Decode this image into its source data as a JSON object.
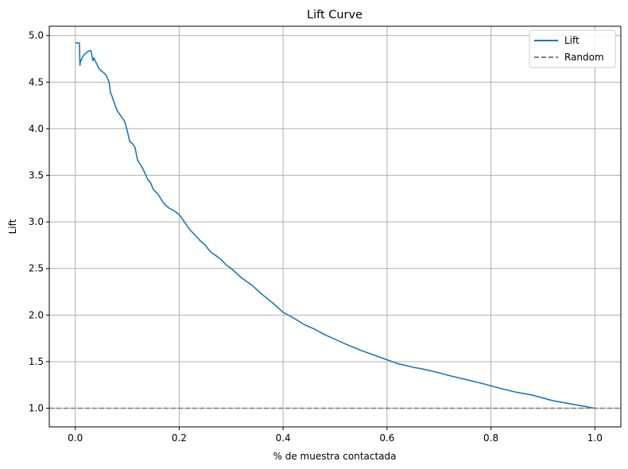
{
  "chart_data": {
    "type": "line",
    "title": "Lift Curve",
    "xlabel": "% de muestra contactada",
    "ylabel": "Lift",
    "xlim": [
      -0.05,
      1.05
    ],
    "ylim": [
      0.8,
      5.1
    ],
    "xticks": [
      0.0,
      0.2,
      0.4,
      0.6,
      0.8,
      1.0
    ],
    "xtick_labels": [
      "0.0",
      "0.2",
      "0.4",
      "0.6",
      "0.8",
      "1.0"
    ],
    "yticks": [
      1.0,
      1.5,
      2.0,
      2.5,
      3.0,
      3.5,
      4.0,
      4.5,
      5.0
    ],
    "ytick_labels": [
      "1.0",
      "1.5",
      "2.0",
      "2.5",
      "3.0",
      "3.5",
      "4.0",
      "4.5",
      "5.0"
    ],
    "grid": true,
    "legend_position": "top-right",
    "series": [
      {
        "name": "Lift",
        "color": "#1f77b4",
        "style": "solid",
        "x": [
          0.0,
          0.008,
          0.009,
          0.01,
          0.015,
          0.02,
          0.025,
          0.03,
          0.034,
          0.036,
          0.04,
          0.042,
          0.045,
          0.05,
          0.055,
          0.06,
          0.065,
          0.068,
          0.07,
          0.075,
          0.08,
          0.085,
          0.09,
          0.095,
          0.1,
          0.105,
          0.11,
          0.115,
          0.12,
          0.125,
          0.13,
          0.14,
          0.145,
          0.15,
          0.155,
          0.16,
          0.17,
          0.18,
          0.19,
          0.2,
          0.21,
          0.22,
          0.23,
          0.24,
          0.25,
          0.26,
          0.27,
          0.28,
          0.29,
          0.3,
          0.32,
          0.34,
          0.36,
          0.38,
          0.4,
          0.42,
          0.44,
          0.46,
          0.48,
          0.5,
          0.52,
          0.55,
          0.58,
          0.6,
          0.62,
          0.65,
          0.67,
          0.7,
          0.72,
          0.75,
          0.78,
          0.8,
          0.82,
          0.85,
          0.88,
          0.9,
          0.92,
          0.95,
          0.98,
          1.0
        ],
        "y": [
          4.92,
          4.92,
          4.68,
          4.72,
          4.78,
          4.81,
          4.83,
          4.84,
          4.73,
          4.76,
          4.71,
          4.69,
          4.65,
          4.62,
          4.6,
          4.57,
          4.5,
          4.38,
          4.36,
          4.28,
          4.2,
          4.16,
          4.12,
          4.08,
          3.98,
          3.86,
          3.84,
          3.8,
          3.66,
          3.62,
          3.57,
          3.45,
          3.42,
          3.35,
          3.32,
          3.29,
          3.2,
          3.15,
          3.12,
          3.08,
          3.0,
          2.92,
          2.86,
          2.8,
          2.75,
          2.68,
          2.64,
          2.6,
          2.54,
          2.5,
          2.4,
          2.32,
          2.22,
          2.13,
          2.03,
          1.97,
          1.9,
          1.85,
          1.79,
          1.74,
          1.69,
          1.62,
          1.56,
          1.52,
          1.48,
          1.44,
          1.42,
          1.38,
          1.35,
          1.31,
          1.27,
          1.24,
          1.21,
          1.17,
          1.14,
          1.11,
          1.08,
          1.05,
          1.02,
          1.0
        ]
      },
      {
        "name": "Random",
        "color": "#808080",
        "style": "dashed",
        "y_constant": 1.0
      }
    ]
  }
}
